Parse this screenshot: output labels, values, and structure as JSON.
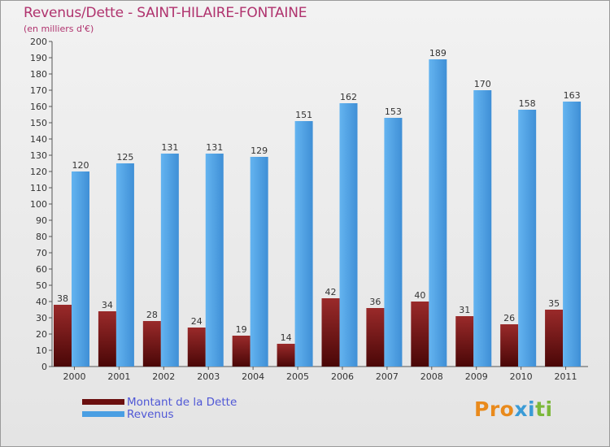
{
  "header": {
    "title": "Revenus/Dette - SAINT-HILAIRE-FONTAINE",
    "subtitle": "(en milliers d'€)"
  },
  "chart_data": {
    "type": "bar",
    "title": "Revenus/Dette - SAINT-HILAIRE-FONTAINE",
    "ylabel": "(en milliers d'€)",
    "xlabel": "",
    "categories": [
      "2000",
      "2001",
      "2002",
      "2003",
      "2004",
      "2005",
      "2006",
      "2007",
      "2008",
      "2009",
      "2010",
      "2011"
    ],
    "series": [
      {
        "name": "Montant de la Dette",
        "color": "#7a1e1e",
        "values": [
          38,
          34,
          28,
          24,
          19,
          14,
          42,
          36,
          40,
          31,
          26,
          35
        ]
      },
      {
        "name": "Revenus",
        "color": "#4a9fe3",
        "values": [
          120,
          125,
          131,
          131,
          129,
          151,
          162,
          153,
          189,
          170,
          158,
          163
        ]
      }
    ],
    "ylim": [
      0,
      200
    ],
    "ytick_step": 10,
    "grid": false,
    "legend": "bottom-left"
  },
  "legend": {
    "items": [
      {
        "label": "Montant de la Dette",
        "color": "#6b0f0f"
      },
      {
        "label": "Revenus",
        "color": "#4a9fe3"
      }
    ]
  },
  "logo": {
    "letters": [
      "P",
      "r",
      "o",
      "x",
      "i",
      "t",
      "i"
    ],
    "colors": [
      "#e98a1c",
      "#e98a1c",
      "#e98a1c",
      "#3a9bd6",
      "#3a9bd6",
      "#7cb83a",
      "#7cb83a"
    ]
  }
}
